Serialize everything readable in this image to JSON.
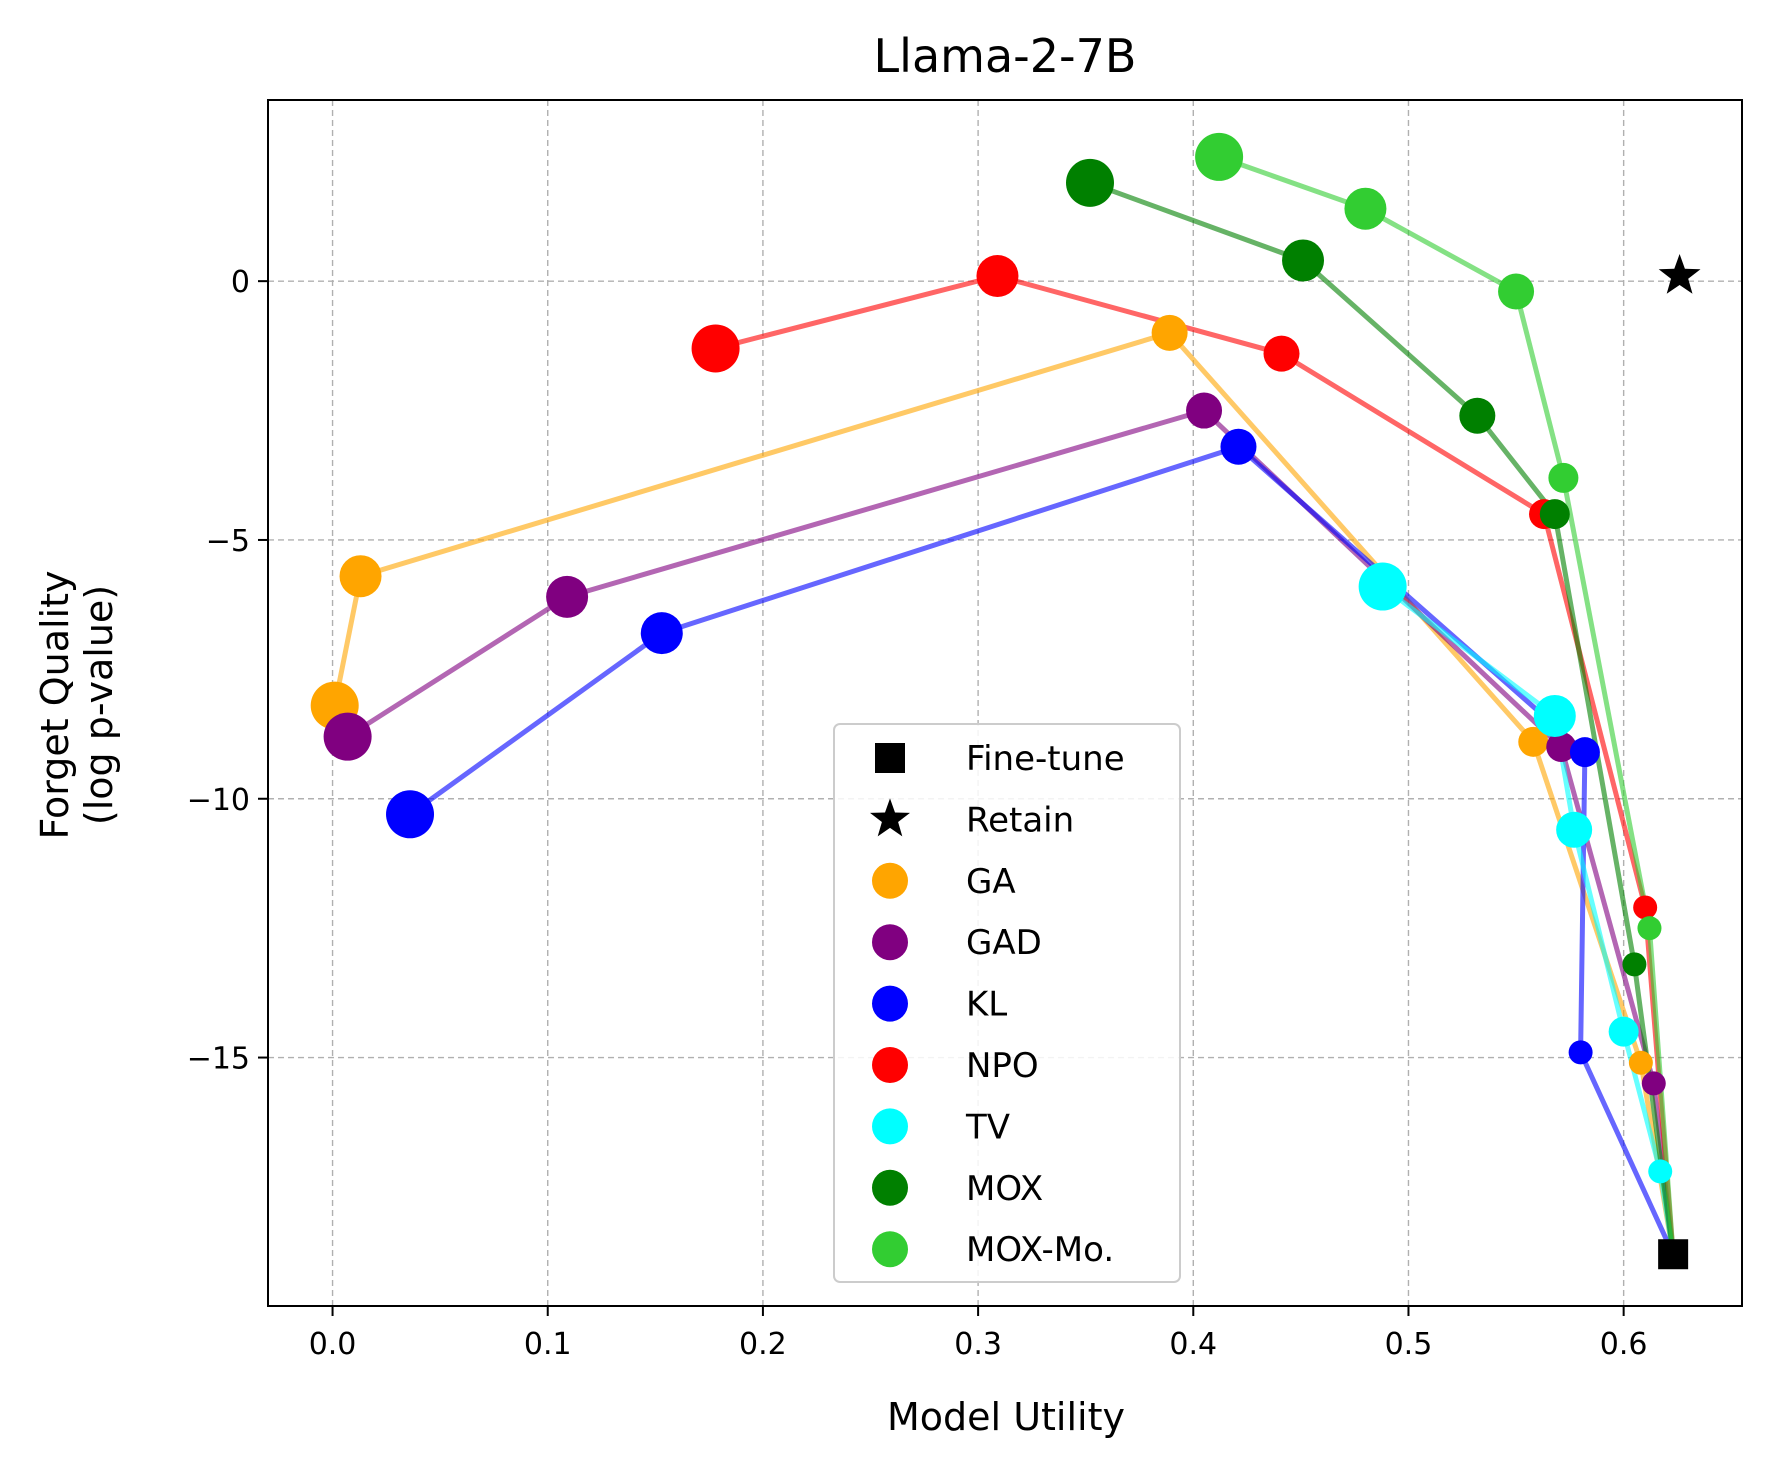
{
  "chart_data": {
    "type": "scatter",
    "title": "Llama-2-7B",
    "xlabel": "Model Utility",
    "ylabel_lines": [
      "Forget Quality",
      "(log p-value)"
    ],
    "xlim": [
      -0.03,
      0.655
    ],
    "ylim": [
      -19.8,
      3.5
    ],
    "xticks": [
      0.0,
      0.1,
      0.2,
      0.3,
      0.4,
      0.5,
      0.6
    ],
    "xtick_labels": [
      "0.0",
      "0.1",
      "0.2",
      "0.3",
      "0.4",
      "0.5",
      "0.6"
    ],
    "yticks": [
      0,
      -5,
      -10,
      -15
    ],
    "ytick_labels": [
      "0",
      "−5",
      "−10",
      "−15"
    ],
    "grid": true,
    "legend_position": "lower-center",
    "fine_tune": {
      "name": "Fine-tune",
      "x": 0.623,
      "y": -18.8,
      "color": "#000000",
      "marker": "square"
    },
    "retain": {
      "name": "Retain",
      "x": 0.626,
      "y": 0.1,
      "color": "#000000",
      "marker": "star"
    },
    "series": [
      {
        "name": "GA",
        "color": "#FFA500",
        "points": [
          [
            0.623,
            -18.8
          ],
          [
            0.608,
            -15.1
          ],
          [
            0.558,
            -8.9
          ],
          [
            0.389,
            -1.0
          ],
          [
            0.013,
            -5.7
          ],
          [
            0.001,
            -8.2
          ]
        ]
      },
      {
        "name": "GAD",
        "color": "#800080",
        "points": [
          [
            0.623,
            -18.8
          ],
          [
            0.614,
            -15.5
          ],
          [
            0.571,
            -9.0
          ],
          [
            0.405,
            -2.5
          ],
          [
            0.109,
            -6.1
          ],
          [
            0.007,
            -8.8
          ]
        ]
      },
      {
        "name": "KL",
        "color": "#0000FF",
        "points": [
          [
            0.623,
            -18.8
          ],
          [
            0.58,
            -14.9
          ],
          [
            0.582,
            -9.1
          ],
          [
            0.421,
            -3.2
          ],
          [
            0.153,
            -6.8
          ],
          [
            0.036,
            -10.3
          ]
        ]
      },
      {
        "name": "NPO",
        "color": "#FF0000",
        "points": [
          [
            0.623,
            -18.8
          ],
          [
            0.61,
            -12.1
          ],
          [
            0.563,
            -4.5
          ],
          [
            0.441,
            -1.4
          ],
          [
            0.309,
            0.1
          ],
          [
            0.178,
            -1.3
          ]
        ]
      },
      {
        "name": "TV",
        "color": "#00FFFF",
        "points": [
          [
            0.623,
            -18.8
          ],
          [
            0.617,
            -17.2
          ],
          [
            0.6,
            -14.5
          ],
          [
            0.577,
            -10.6
          ],
          [
            0.568,
            -8.4
          ],
          [
            0.488,
            -5.9
          ]
        ]
      },
      {
        "name": "MOX",
        "color": "#008000",
        "points": [
          [
            0.623,
            -18.8
          ],
          [
            0.605,
            -13.2
          ],
          [
            0.568,
            -4.5
          ],
          [
            0.532,
            -2.6
          ],
          [
            0.451,
            0.4
          ],
          [
            0.352,
            1.9
          ]
        ]
      },
      {
        "name": "MOX-Mo.",
        "color": "#32CD32",
        "points": [
          [
            0.623,
            -18.8
          ],
          [
            0.612,
            -12.5
          ],
          [
            0.572,
            -3.8
          ],
          [
            0.55,
            -0.2
          ],
          [
            0.48,
            1.4
          ],
          [
            0.412,
            2.4
          ]
        ]
      }
    ]
  }
}
